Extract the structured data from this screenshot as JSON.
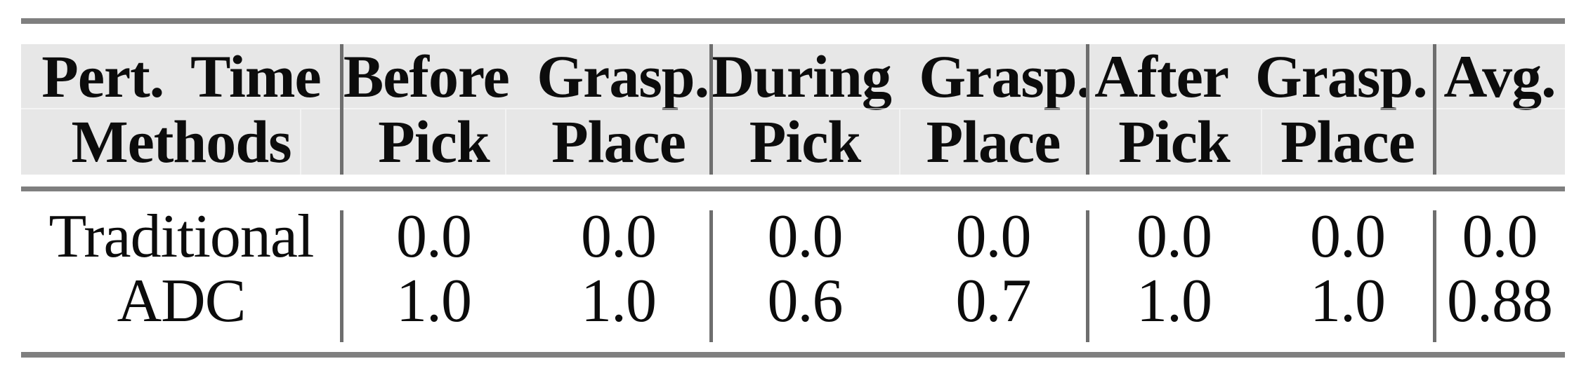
{
  "figure_title": "pick-and-place success-rate table",
  "colors": {
    "header_bg": "#e7e7e7",
    "rule_gray": "#7f7f7f",
    "divider_gray": "#6e6e6e",
    "text": "#0c0c0c",
    "page_bg": "#ffffff"
  },
  "chart_data": {
    "type": "table",
    "header_row1": [
      "Pert. Time",
      "Before Grasp.",
      "During Grasp.",
      "After Grasp.",
      "Avg."
    ],
    "header_row2": [
      "Methods",
      "Pick",
      "Place",
      "Pick",
      "Place",
      "Pick",
      "Place",
      ""
    ],
    "rows": [
      [
        "Traditional",
        "0.0",
        "0.0",
        "0.0",
        "0.0",
        "0.0",
        "0.0",
        "0.0"
      ],
      [
        "ADC",
        "1.0",
        "1.0",
        "0.6",
        "0.7",
        "1.0",
        "1.0",
        "0.88"
      ]
    ]
  }
}
